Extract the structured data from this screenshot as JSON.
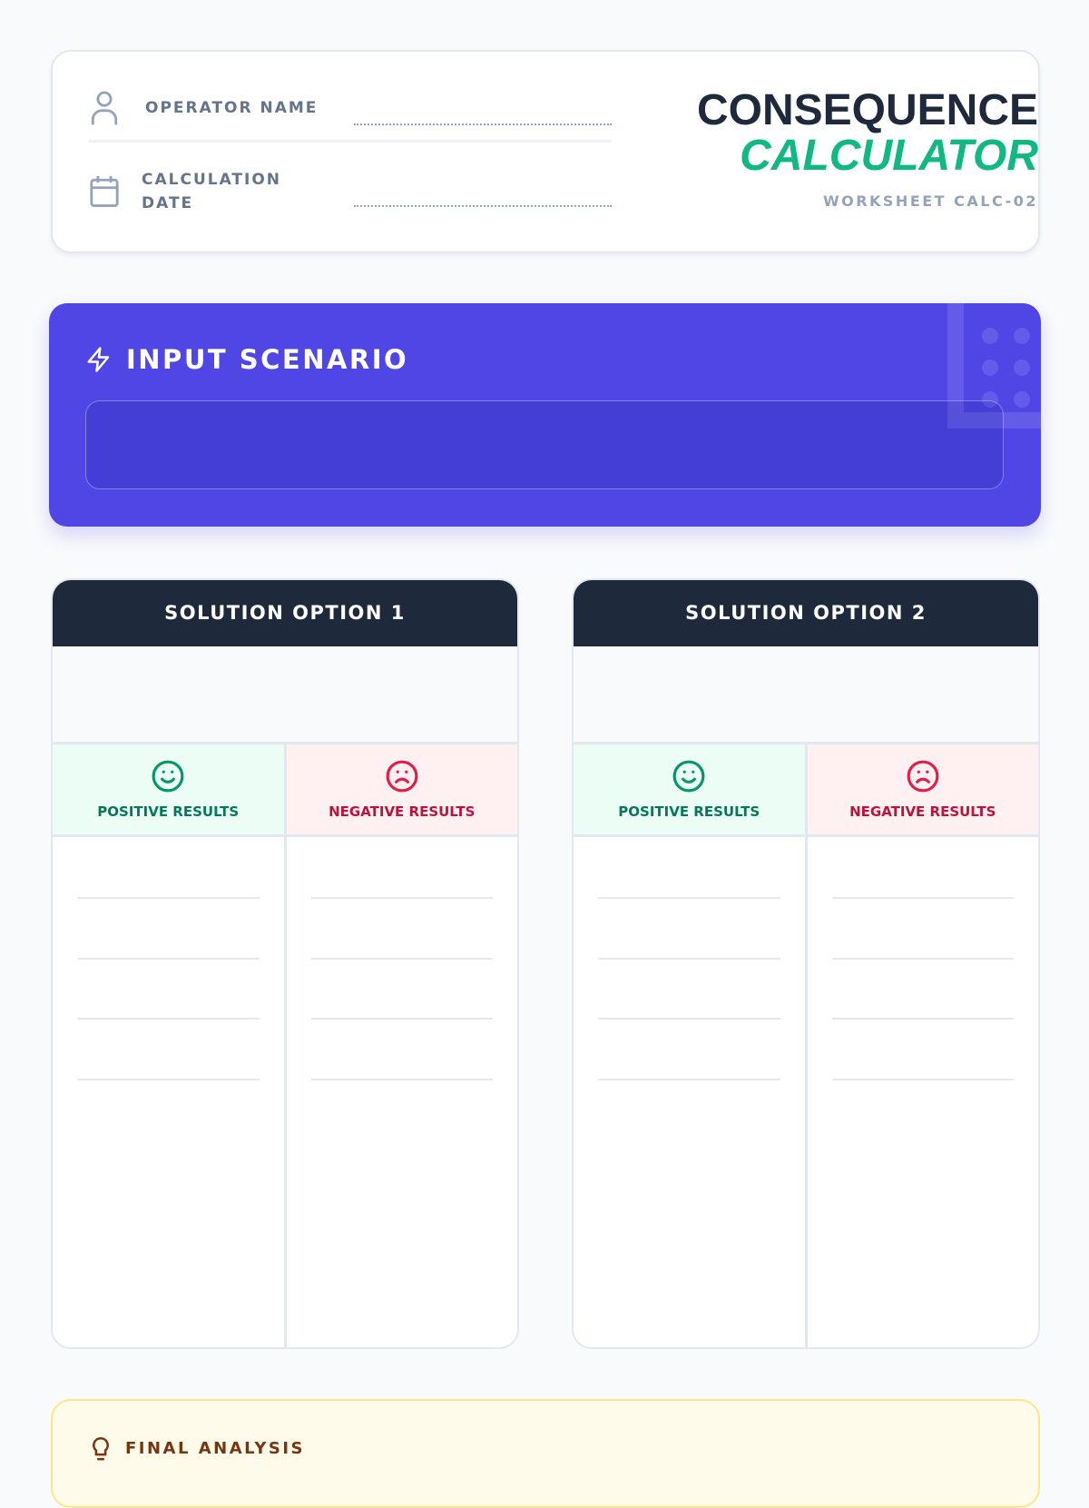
{
  "header": {
    "operator_label": "OPERATOR NAME",
    "operator_value": "",
    "date_label": "CALCULATION DATE",
    "date_value": "",
    "title_line1": "CONSEQUENCE",
    "title_line2": "CALCULATOR",
    "worksheet": "WORKSHEET CALC-02"
  },
  "scenario": {
    "title": "INPUT SCENARIO",
    "value": ""
  },
  "options": [
    {
      "title": "SOLUTION OPTION 1",
      "positive_label": "POSITIVE RESULTS",
      "negative_label": "NEGATIVE RESULTS"
    },
    {
      "title": "SOLUTION OPTION 2",
      "positive_label": "POSITIVE RESULTS",
      "negative_label": "NEGATIVE RESULTS"
    }
  ],
  "final": {
    "title": "FINAL ANALYSIS"
  },
  "colors": {
    "accent": "#4f46e5",
    "positive": "#047857",
    "negative": "#be123c",
    "title_green": "#10b981",
    "dark": "#1e293b"
  }
}
